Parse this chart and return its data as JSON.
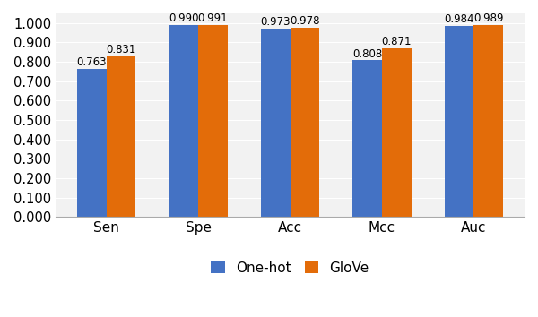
{
  "categories": [
    "Sen",
    "Spe",
    "Acc",
    "Mcc",
    "Auc"
  ],
  "one_hot_values": [
    0.763,
    0.99,
    0.973,
    0.808,
    0.984
  ],
  "glove_values": [
    0.831,
    0.991,
    0.978,
    0.871,
    0.989
  ],
  "one_hot_label": "One-hot",
  "glove_label": "GloVe",
  "one_hot_color": "#4472C4",
  "glove_color": "#E36C09",
  "ylim": [
    0.0,
    1.05
  ],
  "bar_width": 0.32,
  "value_fontsize": 8.5,
  "label_fontsize": 11,
  "tick_fontsize": 10.5,
  "legend_fontsize": 11,
  "bg_color": "#F2F2F2"
}
